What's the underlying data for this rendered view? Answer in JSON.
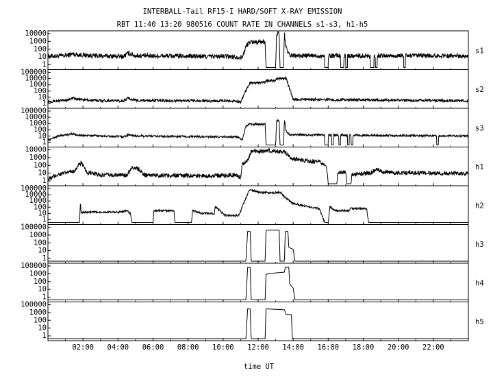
{
  "title_line1": "INTERBALL-Tail RF15-I HARD/SOFT X-RAY EMISSION",
  "title_line2": "RBT 11:40 13:20 980516  COUNT RATE IN CHANNELS s1-s3, h1-h5",
  "chart_data": {
    "type": "line",
    "xlabel": "time UT",
    "x_unit": "hours UT",
    "xlim": [
      0,
      24
    ],
    "x_ticks": [
      {
        "value": 2,
        "label": "02:00"
      },
      {
        "value": 4,
        "label": "04:00"
      },
      {
        "value": 6,
        "label": "06:00"
      },
      {
        "value": 8,
        "label": "08:00"
      },
      {
        "value": 10,
        "label": "10:00"
      },
      {
        "value": 12,
        "label": "12:00"
      },
      {
        "value": 14,
        "label": "14:00"
      },
      {
        "value": 16,
        "label": "16:00"
      },
      {
        "value": 18,
        "label": "18:00"
      },
      {
        "value": 20,
        "label": "20:00"
      },
      {
        "value": 22,
        "label": "22:00"
      }
    ],
    "panels": [
      {
        "name": "s1",
        "yscale": "log",
        "ylim": [
          0.1,
          10000
        ],
        "yticks": [
          "10000",
          "1000",
          "100",
          "10",
          "1"
        ],
        "profile": [
          [
            0,
            4
          ],
          [
            1,
            5
          ],
          [
            1.4,
            9
          ],
          [
            1.8,
            7
          ],
          [
            2.5,
            5
          ],
          [
            4.3,
            4
          ],
          [
            4.6,
            12
          ],
          [
            5,
            5
          ],
          [
            9,
            4
          ],
          [
            10.5,
            4
          ],
          [
            10.9,
            3
          ],
          [
            11.1,
            3
          ],
          [
            11.3,
            100
          ],
          [
            11.5,
            500
          ],
          [
            12.4,
            500
          ],
          [
            12.45,
            0.1
          ],
          [
            13.0,
            0.1
          ],
          [
            13.05,
            8000
          ],
          [
            13.2,
            8000
          ],
          [
            13.25,
            0.1
          ],
          [
            13.45,
            0.1
          ],
          [
            13.5,
            10000
          ],
          [
            13.6,
            50
          ],
          [
            13.8,
            5
          ],
          [
            24,
            5
          ]
        ],
        "dips": [
          [
            15.8,
            16.0
          ],
          [
            16.7,
            16.9
          ],
          [
            17.0,
            17.1
          ],
          [
            18.4,
            18.6
          ],
          [
            18.7,
            18.8
          ],
          [
            20.3,
            20.4
          ]
        ],
        "noise": 0.35
      },
      {
        "name": "s2",
        "yscale": "log",
        "ylim": [
          1,
          100000
        ],
        "yticks": [
          "100000",
          "10000",
          "1000",
          "100",
          "10",
          "1"
        ],
        "profile": [
          [
            0,
            5
          ],
          [
            1,
            7
          ],
          [
            1.4,
            15
          ],
          [
            1.8,
            10
          ],
          [
            2.5,
            7
          ],
          [
            4.3,
            6
          ],
          [
            4.6,
            15
          ],
          [
            5,
            7
          ],
          [
            9,
            6
          ],
          [
            10.7,
            6
          ],
          [
            11.0,
            4
          ],
          [
            11.3,
            200
          ],
          [
            11.5,
            2000
          ],
          [
            12.4,
            3000
          ],
          [
            12.5,
            5000
          ],
          [
            13.0,
            5000
          ],
          [
            13.1,
            10000
          ],
          [
            13.6,
            10000
          ],
          [
            13.8,
            300
          ],
          [
            14.0,
            10
          ],
          [
            24,
            6
          ]
        ],
        "dips": [],
        "noise": 0.2
      },
      {
        "name": "s3",
        "yscale": "log",
        "ylim": [
          1,
          100000
        ],
        "yticks": [
          "100000",
          "10000",
          "1000",
          "100",
          "10",
          "1"
        ],
        "profile": [
          [
            0,
            5
          ],
          [
            0.6,
            20
          ],
          [
            1.4,
            40
          ],
          [
            1.8,
            25
          ],
          [
            3,
            20
          ],
          [
            4.3,
            15
          ],
          [
            4.6,
            30
          ],
          [
            5,
            20
          ],
          [
            9,
            15
          ],
          [
            10.8,
            15
          ],
          [
            11.1,
            5
          ],
          [
            11.3,
            500
          ],
          [
            11.5,
            1000
          ],
          [
            12.4,
            1000
          ],
          [
            12.45,
            1
          ],
          [
            13.0,
            1
          ],
          [
            13.05,
            3000
          ],
          [
            13.2,
            3000
          ],
          [
            13.25,
            1
          ],
          [
            13.45,
            1
          ],
          [
            13.5,
            5000
          ],
          [
            13.6,
            100
          ],
          [
            13.8,
            30
          ],
          [
            24,
            20
          ]
        ],
        "dips": [
          [
            15.8,
            16.0
          ],
          [
            16.2,
            16.3
          ],
          [
            16.6,
            16.7
          ],
          [
            17.1,
            17.2
          ],
          [
            17.3,
            17.4
          ],
          [
            22.2,
            22.3
          ]
        ],
        "noise": 0.15
      },
      {
        "name": "h1",
        "yscale": "log",
        "ylim": [
          1,
          10000
        ],
        "yticks": [
          "10000",
          "1000",
          "100",
          "10",
          "1"
        ],
        "profile": [
          [
            0,
            3
          ],
          [
            0.5,
            10
          ],
          [
            1.5,
            30
          ],
          [
            1.9,
            300
          ],
          [
            2.2,
            20
          ],
          [
            3,
            10
          ],
          [
            4.5,
            10
          ],
          [
            4.8,
            80
          ],
          [
            5.2,
            50
          ],
          [
            5.5,
            10
          ],
          [
            9,
            8
          ],
          [
            10.7,
            10
          ],
          [
            11.0,
            5
          ],
          [
            11.1,
            200
          ],
          [
            11.4,
            500
          ],
          [
            11.6,
            5000
          ],
          [
            12.5,
            6000
          ],
          [
            13.0,
            6000
          ],
          [
            13.5,
            5000
          ],
          [
            13.8,
            1000
          ],
          [
            14.5,
            500
          ],
          [
            15.5,
            300
          ],
          [
            15.9,
            100
          ],
          [
            16.0,
            1
          ],
          [
            16.5,
            1
          ],
          [
            16.55,
            20
          ],
          [
            17.0,
            20
          ],
          [
            17.05,
            1
          ],
          [
            17.3,
            1
          ],
          [
            17.35,
            10
          ],
          [
            18.5,
            20
          ],
          [
            18.8,
            50
          ],
          [
            19.2,
            20
          ],
          [
            24,
            15
          ]
        ],
        "dips": [],
        "noise": 0.25
      },
      {
        "name": "h2",
        "yscale": "log",
        "ylim": [
          1,
          100000
        ],
        "yticks": [
          "100000",
          "10000",
          "1000",
          "100",
          "10",
          "1"
        ],
        "profile": [
          [
            0,
            1
          ],
          [
            1.8,
            1
          ],
          [
            1.85,
            500
          ],
          [
            1.9,
            30
          ],
          [
            4.0,
            30
          ],
          [
            4.5,
            50
          ],
          [
            4.7,
            20
          ],
          [
            4.8,
            1
          ],
          [
            6.0,
            1
          ],
          [
            6.05,
            50
          ],
          [
            7.2,
            50
          ],
          [
            7.25,
            1
          ],
          [
            8.2,
            1
          ],
          [
            8.25,
            50
          ],
          [
            8.8,
            20
          ],
          [
            9.5,
            20
          ],
          [
            9.55,
            200
          ],
          [
            10.1,
            10
          ],
          [
            10.9,
            10
          ],
          [
            11.1,
            200
          ],
          [
            11.5,
            50000
          ],
          [
            12.2,
            20000
          ],
          [
            13.3,
            20000
          ],
          [
            13.5,
            5000
          ],
          [
            14.0,
            500
          ],
          [
            15.5,
            100
          ],
          [
            15.8,
            1
          ],
          [
            16.0,
            1
          ],
          [
            16.1,
            200
          ],
          [
            16.4,
            50
          ],
          [
            17.2,
            50
          ],
          [
            17.3,
            100
          ],
          [
            18.2,
            100
          ],
          [
            18.3,
            1
          ],
          [
            24,
            1
          ]
        ],
        "dips": [],
        "noise": 0.15
      },
      {
        "name": "h3",
        "yscale": "log",
        "ylim": [
          1,
          100000
        ],
        "yticks": [
          "100000",
          "1000",
          "100",
          "10",
          "1"
        ],
        "profile": [
          [
            0,
            1
          ],
          [
            11.3,
            1
          ],
          [
            11.4,
            20000
          ],
          [
            11.55,
            20000
          ],
          [
            11.6,
            1
          ],
          [
            12.4,
            1
          ],
          [
            12.45,
            30000
          ],
          [
            13.2,
            30000
          ],
          [
            13.25,
            1
          ],
          [
            13.5,
            1
          ],
          [
            13.55,
            20000
          ],
          [
            13.7,
            20000
          ],
          [
            13.75,
            100
          ],
          [
            14.0,
            50
          ],
          [
            14.1,
            1
          ],
          [
            24,
            1
          ]
        ],
        "dips": [],
        "noise": 0.0
      },
      {
        "name": "h4",
        "yscale": "log",
        "ylim": [
          1,
          100000
        ],
        "yticks": [
          "100000",
          "1000",
          "100",
          "10",
          "1"
        ],
        "profile": [
          [
            0,
            1
          ],
          [
            11.3,
            1
          ],
          [
            11.4,
            50000
          ],
          [
            11.55,
            50000
          ],
          [
            11.6,
            1
          ],
          [
            12.4,
            1
          ],
          [
            12.45,
            5000
          ],
          [
            13.0,
            8000
          ],
          [
            13.5,
            10000
          ],
          [
            13.55,
            50000
          ],
          [
            13.75,
            50000
          ],
          [
            13.8,
            200
          ],
          [
            14.0,
            50
          ],
          [
            14.1,
            1
          ],
          [
            24,
            1
          ]
        ],
        "dips": [],
        "noise": 0.0
      },
      {
        "name": "h5",
        "yscale": "log",
        "ylim": [
          1,
          100000
        ],
        "yticks": [
          "100000",
          "1000",
          "100",
          "10",
          "1"
        ],
        "profile": [
          [
            0,
            1
          ],
          [
            11.3,
            1
          ],
          [
            11.4,
            20000
          ],
          [
            11.55,
            20000
          ],
          [
            11.6,
            1
          ],
          [
            12.4,
            1
          ],
          [
            12.45,
            20000
          ],
          [
            13.5,
            15000
          ],
          [
            13.6,
            3000
          ],
          [
            13.9,
            3000
          ],
          [
            13.95,
            1
          ],
          [
            24,
            1
          ]
        ],
        "dips": [],
        "noise": 0.0
      }
    ]
  }
}
